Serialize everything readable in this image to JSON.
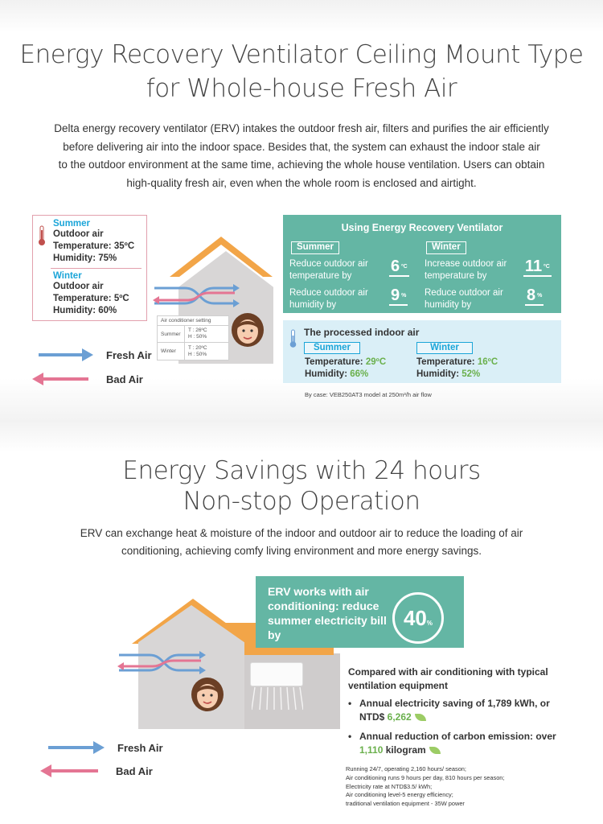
{
  "section1": {
    "title_line1": "Energy Recovery Ventilator Ceiling Mount Type",
    "title_line2": "for Whole-house Fresh Air",
    "para_line1": "Delta energy recovery ventilator (ERV) intakes the outdoor fresh air, filters and purifies the air efficiently",
    "para_line2": "before delivering air into the indoor space. Besides that, the system can exhaust the indoor stale air",
    "para_line3": "to the outdoor environment at the same time, achieving the whole house ventilation. Users can obtain",
    "para_line4": "high-quality fresh air, even when the whole room is enclosed and airtight.",
    "outdoor": {
      "summer_label": "Summer",
      "summer_l1": "Outdoor air",
      "summer_l2": "Temperature: 35ºC",
      "summer_l3": "Humidity: 75%",
      "winter_label": "Winter",
      "winter_l1": "Outdoor air",
      "winter_l2": "Temperature: 5ºC",
      "winter_l3": "Humidity: 60%"
    },
    "ac_table": {
      "header": "Air conditioner setting",
      "summer": "Summer",
      "summer_t": "T : 26ºC",
      "summer_h": "H : 50%",
      "winter": "Winter",
      "winter_t": "T : 20ºC",
      "winter_h": "H : 50%"
    },
    "legend": {
      "fresh": "Fresh Air",
      "bad": "Bad Air"
    },
    "erv": {
      "heading": "Using Energy Recovery Ventilator",
      "summer_tag": "Summer",
      "winter_tag": "Winter",
      "s_temp_l1": "Reduce outdoor air",
      "s_temp_l2": "temperature by",
      "s_temp_val": "6",
      "s_temp_unit": "ºC",
      "s_hum_l1": "Reduce outdoor air",
      "s_hum_l2": "humidity by",
      "s_hum_val": "9",
      "s_hum_unit": "%",
      "w_temp_l1": "Increase outdoor air",
      "w_temp_l2": "temperature by",
      "w_temp_val": "11",
      "w_temp_unit": "ºC",
      "w_hum_l1": "Reduce outdoor air",
      "w_hum_l2": "humidity by",
      "w_hum_val": "8",
      "w_hum_unit": "%"
    },
    "processed": {
      "heading": "The processed indoor air",
      "summer_tag": "Summer",
      "winter_tag": "Winter",
      "s_temp_label": "Temperature: ",
      "s_temp_val": "29ºC",
      "s_hum_label": "Humidity: ",
      "s_hum_val": "66%",
      "w_temp_label": "Temperature: ",
      "w_temp_val": "16ºC",
      "w_hum_label": "Humidity: ",
      "w_hum_val": "52%"
    },
    "case_note": "By case: VEB250AT3 model at 250m³/h air flow"
  },
  "section2": {
    "title_line1": "Energy Savings with 24 hours",
    "title_line2": "Non-stop Operation",
    "para_line1": "ERV can exchange heat & moisture of the indoor and outdoor air to reduce the loading of air",
    "para_line2": "conditioning, achieving comfy living environment and more energy savings.",
    "erv_box_text": "ERV works with air conditioning: reduce summer electricity bill by",
    "percent": "40",
    "percent_unit": "%",
    "compare_title": "Compared with air conditioning with typical ventilation equipment",
    "bullet1_pre": "Annual electricity saving of 1,789 kWh, or NTD$ ",
    "bullet1_val": "6,262",
    "bullet2_pre": "Annual reduction of carbon emission: over ",
    "bullet2_val": "1,110",
    "bullet2_post": " kilogram",
    "foot1": "Running 24/7, operating 2,160 hours/ season;",
    "foot2": "Air conditioning runs 9 hours per day, 810 hours per season;",
    "foot3": "Electricity rate at NTD$3.5/ kWh;",
    "foot4": "Air conditioning level-5 energy efficiency;",
    "foot5": "traditional ventilation equipment - 35W power",
    "legend": {
      "fresh": "Fresh Air",
      "bad": "Bad Air"
    }
  },
  "colors": {
    "fresh_arrow": "#6b9fd4",
    "bad_arrow": "#e47593",
    "teal": "#64b6a4",
    "roof": "#f2a548",
    "cyan_text": "#1ba5d8",
    "green_value": "#6ab04c"
  }
}
